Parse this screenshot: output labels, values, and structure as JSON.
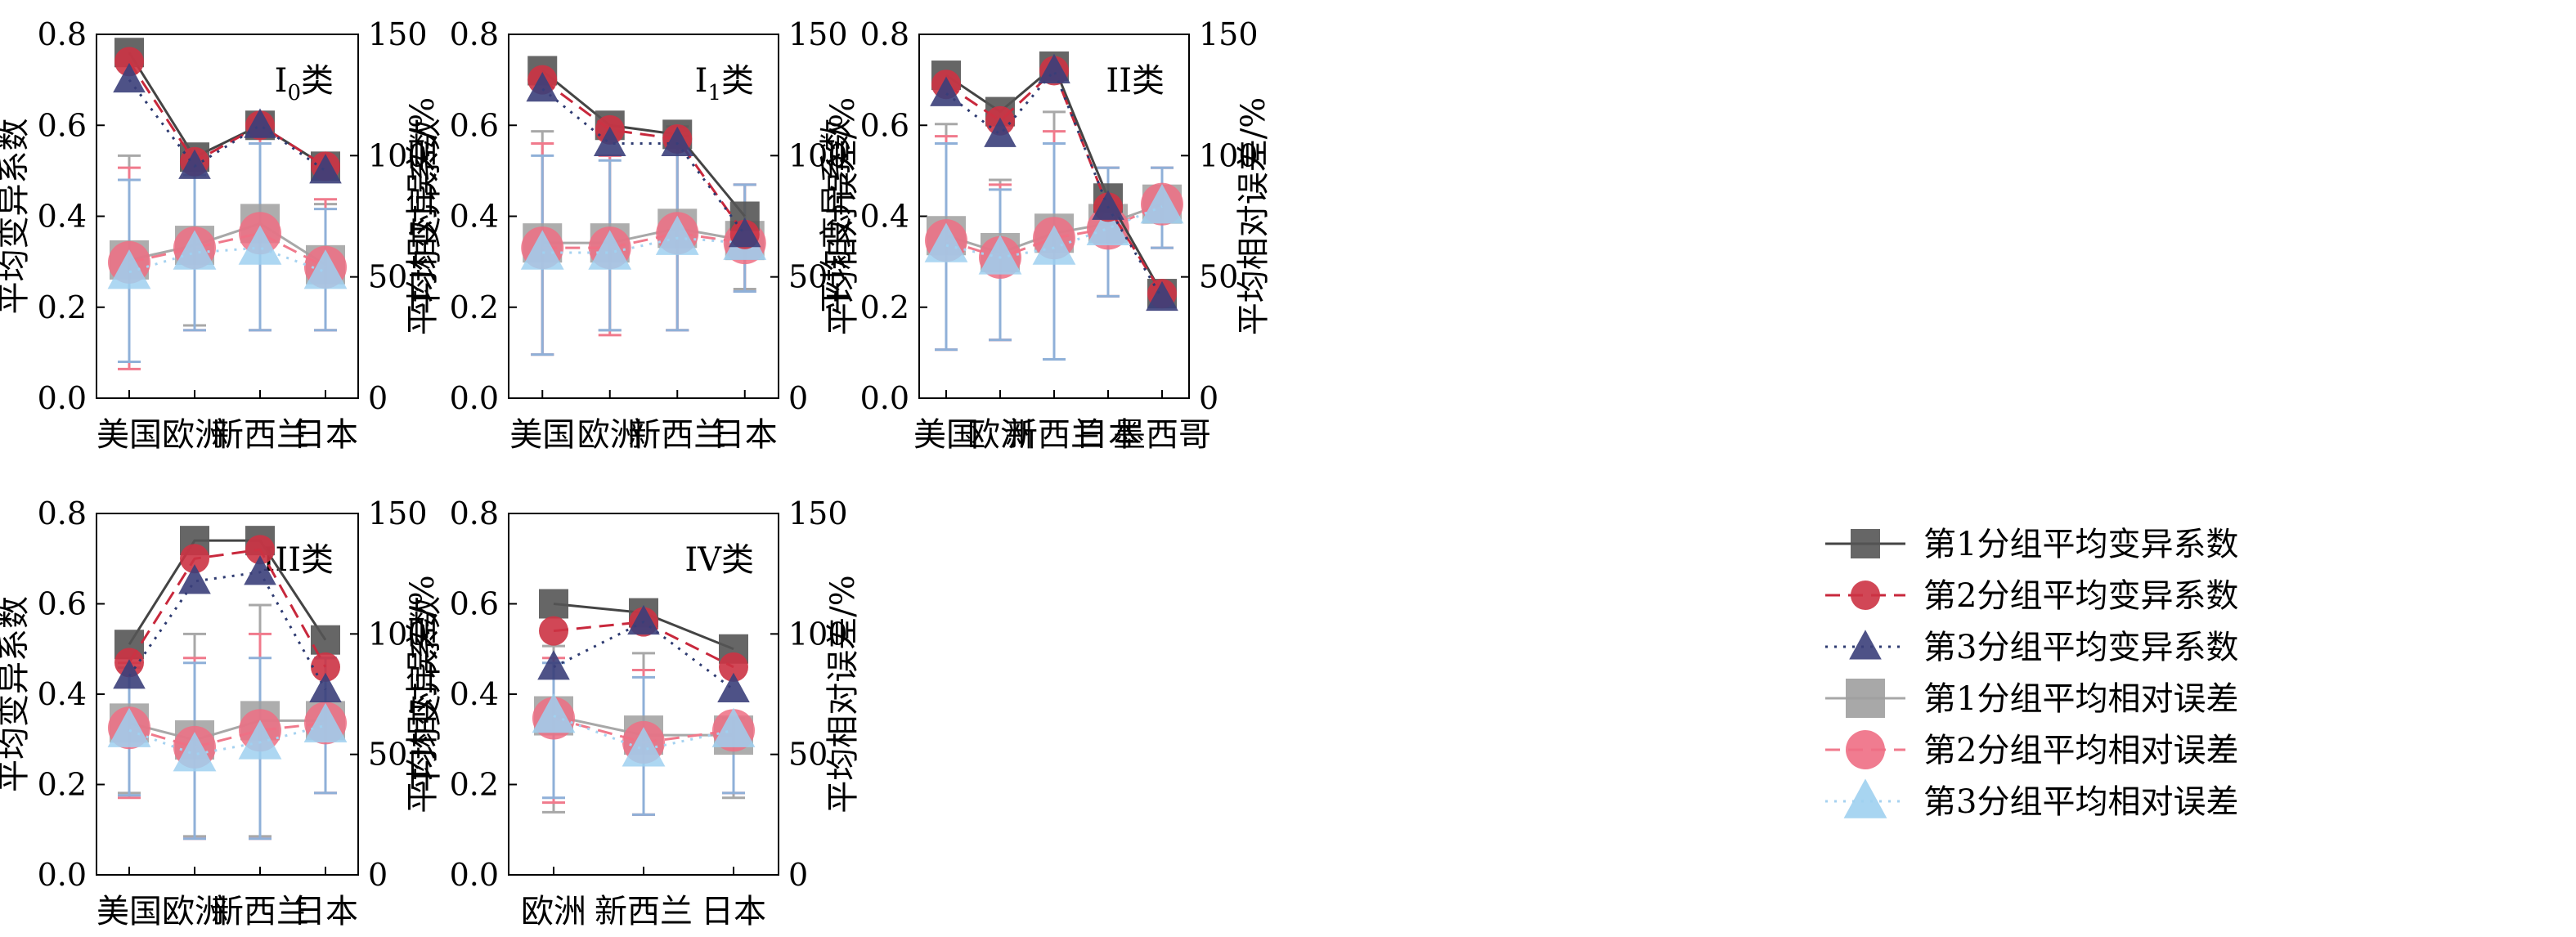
{
  "legend": {
    "entries": [
      {
        "label": "第1分组平均变异系数",
        "marker": "square",
        "color": "#555555",
        "dash": "solid"
      },
      {
        "label": "第2分组平均变异系数",
        "marker": "circle",
        "color": "#c8283c",
        "dash": "dash"
      },
      {
        "label": "第3分组平均变异系数",
        "marker": "triangle",
        "color": "#2d3a70",
        "dash": "dot"
      },
      {
        "label": "第1分组平均相对误差",
        "marker": "square",
        "color": "#a3a3a3",
        "dash": "solid"
      },
      {
        "label": "第2分组平均相对误差",
        "marker": "circle",
        "color": "#f07a8c",
        "dash": "dash"
      },
      {
        "label": "第3分组平均相对误差",
        "marker": "triangle",
        "color": "#a6d2f0",
        "dash": "dot"
      }
    ]
  },
  "chart_data": [
    {
      "type": "line",
      "title_main": "I",
      "title_sub": "0",
      "title_suffix": "类",
      "categories": [
        "美国",
        "欧洲",
        "新西兰",
        "日本"
      ],
      "ylabel": "平均变异系数",
      "y2label": "平均相对误差/%",
      "ylim": [
        0,
        0.8
      ],
      "yticks": [
        "0.0",
        "0.2",
        "0.4",
        "0.6",
        "0.8"
      ],
      "y2lim": [
        0,
        150
      ],
      "y2ticks": [
        "0",
        "50",
        "100",
        "150"
      ],
      "cv_series": [
        {
          "name": "第1分组平均变异系数",
          "values": [
            0.76,
            0.53,
            0.6,
            0.51
          ]
        },
        {
          "name": "第2分组平均变异系数",
          "values": [
            0.74,
            0.52,
            0.6,
            0.51
          ]
        },
        {
          "name": "第3分组平均变异系数",
          "values": [
            0.7,
            0.51,
            0.6,
            0.5
          ]
        }
      ],
      "err_series": [
        {
          "name": "第1分组平均相对误差",
          "values": [
            57,
            63,
            72,
            55
          ],
          "err_low": [
            15,
            30,
            28,
            28
          ],
          "err_high": [
            100,
            95,
            115,
            80
          ]
        },
        {
          "name": "第2分组平均相对误差",
          "values": [
            56,
            62,
            68,
            54
          ],
          "err_low": [
            12,
            28,
            28,
            28
          ],
          "err_high": [
            95,
            95,
            110,
            82
          ]
        },
        {
          "name": "第3分组平均相对误差",
          "values": [
            52,
            60,
            62,
            52
          ],
          "err_low": [
            15,
            28,
            28,
            28
          ],
          "err_high": [
            90,
            92,
            105,
            78
          ]
        }
      ]
    },
    {
      "type": "line",
      "title_main": "I",
      "title_sub": "1",
      "title_suffix": "类",
      "categories": [
        "美国",
        "欧洲",
        "新西兰",
        "日本"
      ],
      "ylabel": "平均变异系数",
      "y2label": "平均相对误差/%",
      "ylim": [
        0,
        0.8
      ],
      "yticks": [
        "0.0",
        "0.2",
        "0.4",
        "0.6",
        "0.8"
      ],
      "y2lim": [
        0,
        150
      ],
      "y2ticks": [
        "0",
        "50",
        "100",
        "150"
      ],
      "cv_series": [
        {
          "name": "第1分组平均变异系数",
          "values": [
            0.72,
            0.6,
            0.58,
            0.4
          ]
        },
        {
          "name": "第2分组平均变异系数",
          "values": [
            0.7,
            0.59,
            0.57,
            0.36
          ]
        },
        {
          "name": "第3分组平均变异系数",
          "values": [
            0.68,
            0.56,
            0.56,
            0.36
          ]
        }
      ],
      "err_series": [
        {
          "name": "第1分组平均相对误差",
          "values": [
            64,
            64,
            70,
            65
          ],
          "err_low": [
            18,
            28,
            28,
            45
          ],
          "err_high": [
            110,
            100,
            112,
            88
          ]
        },
        {
          "name": "第2分组平均相对误差",
          "values": [
            62,
            62,
            68,
            64
          ],
          "err_low": [
            18,
            26,
            28,
            44
          ],
          "err_high": [
            105,
            100,
            110,
            88
          ]
        },
        {
          "name": "第3分组平均相对误差",
          "values": [
            60,
            60,
            66,
            64
          ],
          "err_low": [
            18,
            28,
            28,
            44
          ],
          "err_high": [
            100,
            98,
            108,
            88
          ]
        }
      ]
    },
    {
      "type": "line",
      "title_main": "II",
      "title_sub": "",
      "title_suffix": "类",
      "categories": [
        "美国",
        "欧洲",
        "新西兰",
        "日本",
        "墨西哥"
      ],
      "ylabel": "平均变异系数",
      "y2label": "平均相对误差/%",
      "ylim": [
        0,
        0.8
      ],
      "yticks": [
        "0.0",
        "0.2",
        "0.4",
        "0.6",
        "0.8"
      ],
      "y2lim": [
        0,
        150
      ],
      "y2ticks": [
        "0",
        "50",
        "100",
        "150"
      ],
      "cv_series": [
        {
          "name": "第1分组平均变异系数",
          "values": [
            0.71,
            0.63,
            0.73,
            0.44,
            0.23
          ]
        },
        {
          "name": "第2分组平均变异系数",
          "values": [
            0.69,
            0.61,
            0.72,
            0.42,
            0.23
          ]
        },
        {
          "name": "第3分组平均变异系数",
          "values": [
            0.67,
            0.58,
            0.72,
            0.42,
            0.22
          ]
        }
      ],
      "err_series": [
        {
          "name": "第1分组平均相对误差",
          "values": [
            67,
            60,
            68,
            72,
            80
          ],
          "err_low": [
            20,
            24,
            16,
            42,
            62
          ],
          "err_high": [
            113,
            90,
            118,
            95,
            95
          ]
        },
        {
          "name": "第2分组平均相对误差",
          "values": [
            65,
            58,
            66,
            70,
            80
          ],
          "err_low": [
            20,
            24,
            16,
            42,
            62
          ],
          "err_high": [
            108,
            88,
            110,
            95,
            95
          ]
        },
        {
          "name": "第3分组平均相对误差",
          "values": [
            63,
            58,
            62,
            70,
            79
          ],
          "err_low": [
            20,
            24,
            16,
            42,
            62
          ],
          "err_high": [
            105,
            86,
            105,
            95,
            95
          ]
        }
      ]
    },
    {
      "type": "line",
      "title_main": "III",
      "title_sub": "",
      "title_suffix": "类",
      "categories": [
        "美国",
        "欧洲",
        "新西兰",
        "日本"
      ],
      "ylabel": "平均变异系数",
      "y2label": "平均相对误差/%",
      "ylim": [
        0,
        0.8
      ],
      "yticks": [
        "0.0",
        "0.2",
        "0.4",
        "0.6",
        "0.8"
      ],
      "y2lim": [
        0,
        150
      ],
      "y2ticks": [
        "0",
        "50",
        "100",
        "150"
      ],
      "cv_series": [
        {
          "name": "第1分组平均变异系数",
          "values": [
            0.51,
            0.74,
            0.74,
            0.52
          ]
        },
        {
          "name": "第2分组平均变异系数",
          "values": [
            0.47,
            0.7,
            0.72,
            0.46
          ]
        },
        {
          "name": "第3分组平均变异系数",
          "values": [
            0.44,
            0.65,
            0.67,
            0.41
          ]
        }
      ],
      "err_series": [
        {
          "name": "第1分组平均相对误差",
          "values": [
            63,
            56,
            64,
            64
          ],
          "err_low": [
            34,
            16,
            16,
            34
          ],
          "err_high": [
            90,
            100,
            112,
            90
          ]
        },
        {
          "name": "第2分组平均相对误差",
          "values": [
            61,
            53,
            60,
            63
          ],
          "err_low": [
            32,
            15,
            15,
            34
          ],
          "err_high": [
            88,
            90,
            100,
            90
          ]
        },
        {
          "name": "第3分组平均相对误差",
          "values": [
            60,
            50,
            55,
            62
          ],
          "err_low": [
            33,
            15,
            15,
            34
          ],
          "err_high": [
            86,
            88,
            90,
            90
          ]
        }
      ]
    },
    {
      "type": "line",
      "title_main": "IV",
      "title_sub": "",
      "title_suffix": "类",
      "categories": [
        "欧洲",
        "新西兰",
        "日本"
      ],
      "ylabel": "平均变异系数",
      "y2label": "平均相对误差/%",
      "ylim": [
        0,
        0.8
      ],
      "yticks": [
        "0.0",
        "0.2",
        "0.4",
        "0.6",
        "0.8"
      ],
      "y2lim": [
        0,
        150
      ],
      "y2ticks": [
        "0",
        "50",
        "100",
        "150"
      ],
      "cv_series": [
        {
          "name": "第1分组平均变异系数",
          "values": [
            0.6,
            0.58,
            0.5
          ]
        },
        {
          "name": "第2分组平均变异系数",
          "values": [
            0.54,
            0.56,
            0.46
          ]
        },
        {
          "name": "第3分组平均变异系数",
          "values": [
            0.46,
            0.56,
            0.41
          ]
        }
      ],
      "err_series": [
        {
          "name": "第1分组平均相对误差",
          "values": [
            66,
            58,
            58
          ],
          "err_low": [
            26,
            25,
            32
          ],
          "err_high": [
            95,
            92,
            65
          ]
        },
        {
          "name": "第2分组平均相对误差",
          "values": [
            65,
            55,
            60
          ],
          "err_low": [
            30,
            25,
            34
          ],
          "err_high": [
            90,
            85,
            65
          ]
        },
        {
          "name": "第3分组平均相对误差",
          "values": [
            66,
            52,
            60
          ],
          "err_low": [
            32,
            25,
            34
          ],
          "err_high": [
            88,
            82,
            65
          ]
        }
      ]
    }
  ]
}
